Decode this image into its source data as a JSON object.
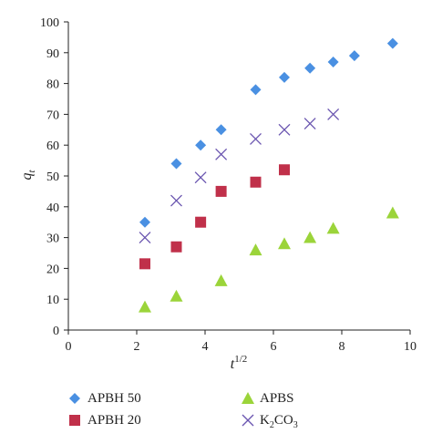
{
  "chart_data": {
    "type": "scatter",
    "xlabel": "t",
    "xlabel_sup": "1/2",
    "ylabel": "q",
    "ylabel_sub": "t",
    "xlim": [
      0,
      10
    ],
    "ylim": [
      0,
      100
    ],
    "xticks": [
      "0",
      "2",
      "4",
      "6",
      "8",
      "10"
    ],
    "yticks": [
      "0",
      "10",
      "20",
      "30",
      "40",
      "50",
      "60",
      "70",
      "80",
      "90",
      "100"
    ],
    "grid": false,
    "legend_position": "bottom",
    "series": [
      {
        "name": "APBH 50",
        "marker": "diamond",
        "color": "#4a90e2",
        "x": [
          2.24,
          3.16,
          3.87,
          4.47,
          5.48,
          6.32,
          7.07,
          7.75,
          8.37,
          9.49
        ],
        "y": [
          35,
          54,
          60,
          65,
          78,
          82,
          85,
          87,
          89,
          93
        ]
      },
      {
        "name": "APBH 20",
        "marker": "square",
        "color": "#c0304a",
        "x": [
          2.24,
          3.16,
          3.87,
          4.47,
          5.48,
          6.32
        ],
        "y": [
          21.5,
          27,
          35,
          45,
          48,
          52
        ]
      },
      {
        "name": "APBS",
        "marker": "triangle",
        "color": "#9bd43a",
        "x": [
          2.24,
          3.16,
          4.47,
          5.48,
          6.32,
          7.07,
          7.75,
          9.49
        ],
        "y": [
          7.5,
          11,
          16,
          26,
          28,
          30,
          33,
          38
        ]
      },
      {
        "name_main": "K",
        "name_sub": "2",
        "name_tail": "CO",
        "name_sub2": "3",
        "marker": "cross",
        "color": "#6a55b0",
        "x": [
          2.24,
          3.16,
          3.87,
          4.47,
          5.48,
          6.32,
          7.07,
          7.75
        ],
        "y": [
          30,
          42,
          49.5,
          57,
          62,
          65,
          67,
          70
        ]
      }
    ]
  }
}
